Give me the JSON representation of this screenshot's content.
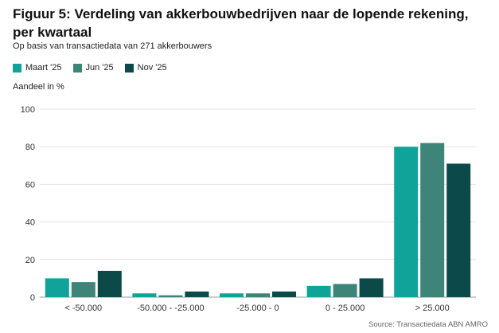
{
  "chart_data": {
    "type": "bar",
    "title": "Figuur 5: Verdeling van akkerbouwbedrijven naar de lopende rekening, per kwartaal",
    "subtitle": "Op basis van transactiedata van 271 akkerbouwers",
    "ylabel": "Aandeel in %",
    "xlabel": "",
    "ylim": [
      0,
      100
    ],
    "yticks": [
      "0",
      "20",
      "40",
      "60",
      "80",
      "100"
    ],
    "ytick_values": [
      0,
      20,
      40,
      60,
      80,
      100
    ],
    "grid": true,
    "legend_position": "top-left",
    "categories": [
      "< -50.000",
      "-50.000 - -25.000",
      "-25.000 - 0",
      "0 - 25.000",
      "> 25.000"
    ],
    "series": [
      {
        "name": "Maart '25",
        "color": "#0fa39a",
        "values": [
          10,
          2,
          2,
          6,
          80
        ]
      },
      {
        "name": "Jun '25",
        "color": "#3f8479",
        "values": [
          8,
          1,
          2,
          7,
          82
        ]
      },
      {
        "name": "Nov '25",
        "color": "#0b4a48",
        "values": [
          14,
          3,
          3,
          10,
          71
        ]
      }
    ],
    "source": "Source:  Transactiedata ABN AMRO"
  }
}
